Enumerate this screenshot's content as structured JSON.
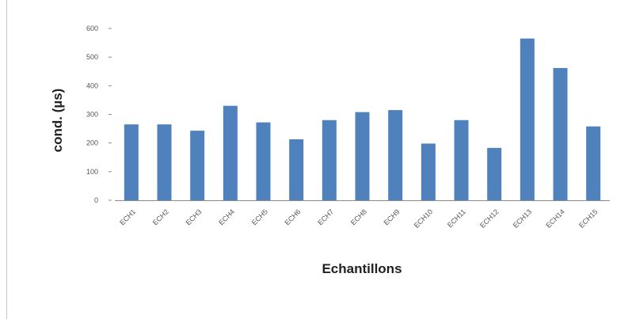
{
  "colors": {
    "bar": "#4f81bd",
    "axis": "#8c8c8c",
    "text": "#555555"
  },
  "chart_data": {
    "type": "bar",
    "title": "",
    "xlabel": "Echantillons",
    "ylabel": "cond. (µs)",
    "ylim": [
      0,
      600
    ],
    "yticks": [
      0,
      100,
      200,
      300,
      400,
      500,
      600
    ],
    "grid": false,
    "categories": [
      "ECH1",
      "ECH2",
      "ECH3",
      "ECH4",
      "ECH5",
      "ECH6",
      "ECH7",
      "ECH8",
      "ECH9",
      "ECH10",
      "ECH11",
      "ECH12",
      "ECH13",
      "ECH14",
      "ECH15"
    ],
    "series": [
      {
        "values": [
          265,
          265,
          243,
          330,
          272,
          213,
          280,
          308,
          315,
          198,
          280,
          183,
          565,
          462,
          258
        ]
      }
    ]
  }
}
